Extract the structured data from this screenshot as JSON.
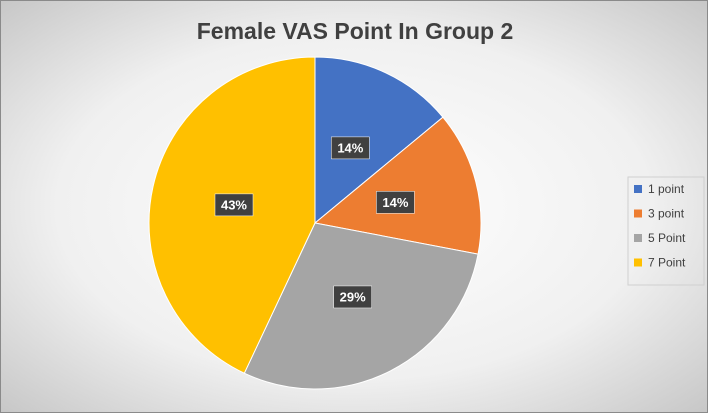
{
  "chart_data": {
    "type": "pie",
    "title": "Female VAS Point In Group 2",
    "categories": [
      "1 point",
      "3 point",
      "5 Point",
      "7 Point"
    ],
    "values": [
      14,
      14,
      29,
      43
    ],
    "value_labels": [
      "14%",
      "14%",
      "29%",
      "43%"
    ],
    "colors": [
      "#4472c4",
      "#ed7d31",
      "#a5a5a5",
      "#ffc000"
    ],
    "legend": "right"
  }
}
